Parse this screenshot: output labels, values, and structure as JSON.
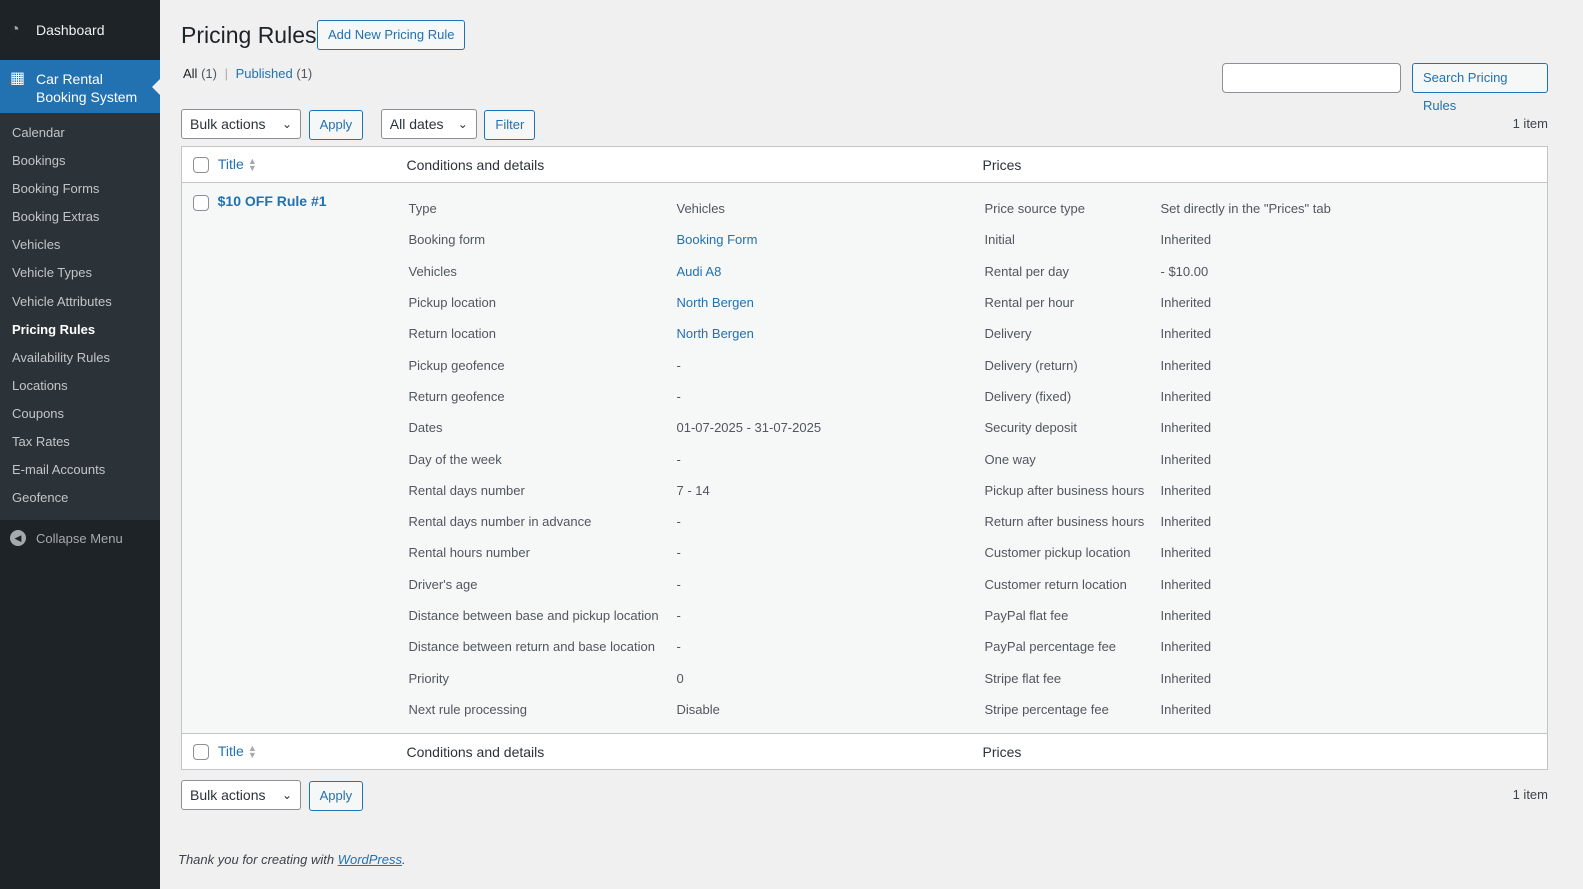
{
  "sidebar": {
    "dashboard": "Dashboard",
    "current": "Car Rental Booking System",
    "items": [
      "Calendar",
      "Bookings",
      "Booking Forms",
      "Booking Extras",
      "Vehicles",
      "Vehicle Types",
      "Vehicle Attributes",
      "Pricing Rules",
      "Availability Rules",
      "Locations",
      "Coupons",
      "Tax Rates",
      "E-mail Accounts",
      "Geofence"
    ],
    "active": "Pricing Rules",
    "collapse": "Collapse Menu"
  },
  "header": {
    "title": "Pricing Rules",
    "add_new": "Add New Pricing Rule"
  },
  "views": {
    "all": "All",
    "all_count": "(1)",
    "sep": "|",
    "published": "Published",
    "published_count": "(1)"
  },
  "search": {
    "value": "",
    "button": "Search Pricing Rules"
  },
  "toolbar": {
    "bulk": "Bulk actions",
    "apply": "Apply",
    "dates": "All dates",
    "filter": "Filter",
    "count": "1 item"
  },
  "columns": {
    "title": "Title",
    "conditions": "Conditions and details",
    "prices": "Prices"
  },
  "row": {
    "title": "$10 OFF Rule #1",
    "conditions": [
      [
        "Type",
        "Vehicles",
        false
      ],
      [
        "Booking form",
        "Booking Form",
        true
      ],
      [
        "Vehicles",
        "Audi A8",
        true
      ],
      [
        "Pickup location",
        "North Bergen",
        true
      ],
      [
        "Return location",
        "North Bergen",
        true
      ],
      [
        "Pickup geofence",
        "-",
        false
      ],
      [
        "Return geofence",
        "-",
        false
      ],
      [
        "Dates",
        "01-07-2025 - 31-07-2025",
        false
      ],
      [
        "Day of the week",
        "-",
        false
      ],
      [
        "Rental days number",
        "7 - 14",
        false
      ],
      [
        "Rental days number in advance",
        "-",
        false
      ],
      [
        "Rental hours number",
        "-",
        false
      ],
      [
        "Driver's age",
        "-",
        false
      ],
      [
        "Distance between base and pickup location",
        "-",
        false
      ],
      [
        "Distance between return and base location",
        "-",
        false
      ],
      [
        "Priority",
        "0",
        false
      ],
      [
        "Next rule processing",
        "Disable",
        false
      ]
    ],
    "prices": [
      [
        "Price source type",
        "Set directly in the \"Prices\" tab"
      ],
      [
        "Initial",
        "Inherited"
      ],
      [
        "Rental per day",
        "- $10.00"
      ],
      [
        "Rental per hour",
        "Inherited"
      ],
      [
        "Delivery",
        "Inherited"
      ],
      [
        "Delivery (return)",
        "Inherited"
      ],
      [
        "Delivery (fixed)",
        "Inherited"
      ],
      [
        "Security deposit",
        "Inherited"
      ],
      [
        "One way",
        "Inherited"
      ],
      [
        "Pickup after business hours",
        "Inherited"
      ],
      [
        "Return after business hours",
        "Inherited"
      ],
      [
        "Customer pickup location",
        "Inherited"
      ],
      [
        "Customer return location",
        "Inherited"
      ],
      [
        "PayPal flat fee",
        "Inherited"
      ],
      [
        "PayPal percentage fee",
        "Inherited"
      ],
      [
        "Stripe flat fee",
        "Inherited"
      ],
      [
        "Stripe percentage fee",
        "Inherited"
      ]
    ]
  },
  "footer": {
    "text": "Thank you for creating with ",
    "link": "WordPress",
    "end": "."
  }
}
